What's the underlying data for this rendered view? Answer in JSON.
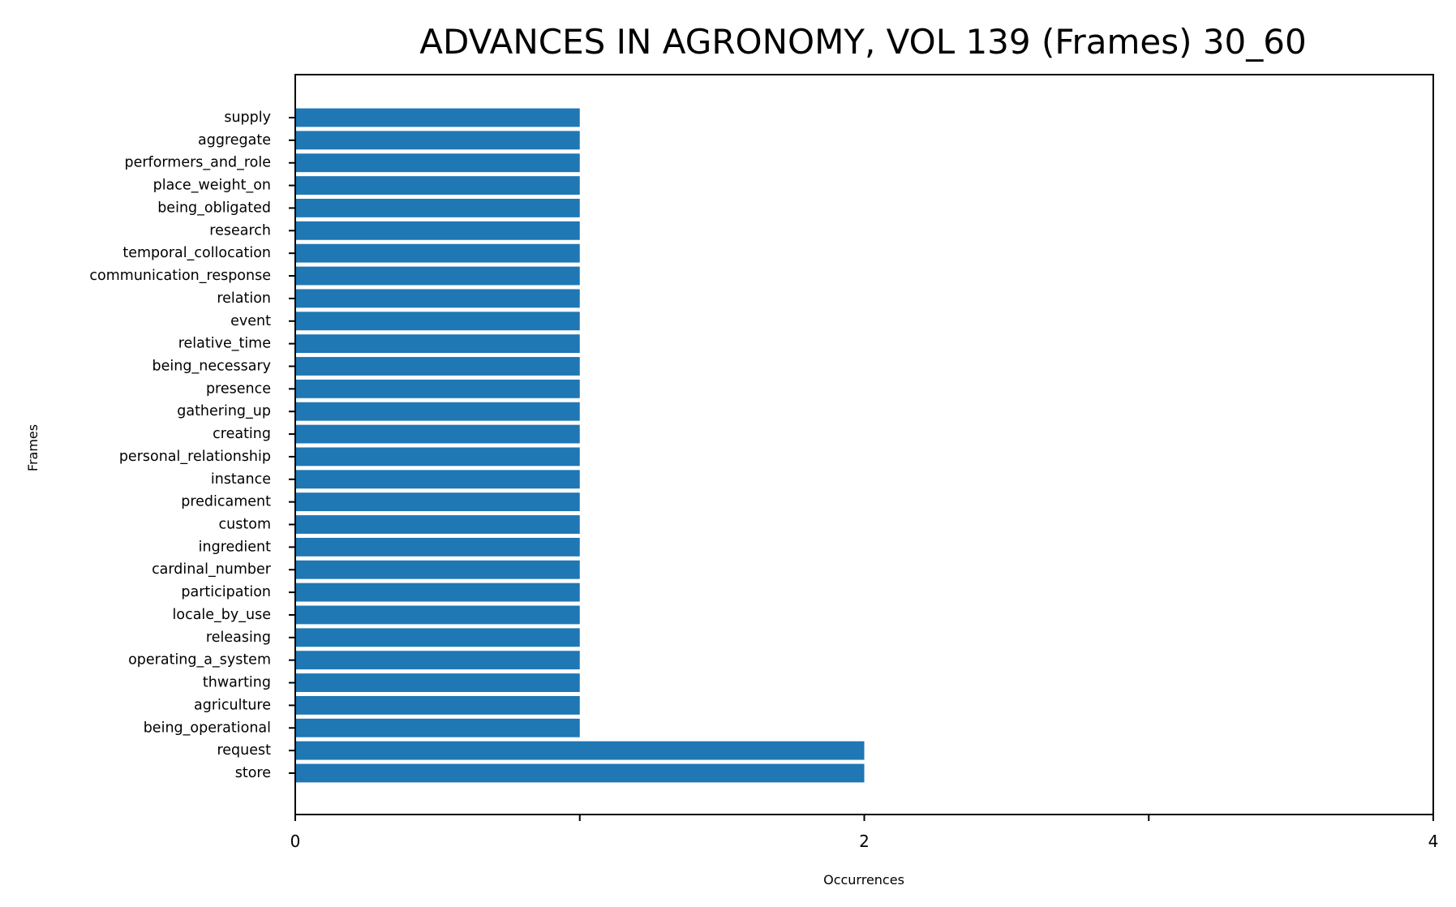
{
  "chart_data": {
    "type": "bar",
    "orientation": "horizontal",
    "title": "ADVANCES IN AGRONOMY, VOL 139 (Frames) 30_60",
    "xlabel": "Occurrences",
    "ylabel": "Frames",
    "xlim": [
      0,
      4
    ],
    "xticks": [
      0,
      1,
      2,
      3,
      4
    ],
    "xtick_labels": [
      "0",
      "",
      "2",
      "",
      "4"
    ],
    "grid": false,
    "legend": "none",
    "color": "#1f77b4",
    "categories": [
      "supply",
      "aggregate",
      "performers_and_role",
      "place_weight_on",
      "being_obligated",
      "research",
      "temporal_collocation",
      "communication_response",
      "relation",
      "event",
      "relative_time",
      "being_necessary",
      "presence",
      "gathering_up",
      "creating",
      "personal_relationship",
      "instance",
      "predicament",
      "custom",
      "ingredient",
      "cardinal_number",
      "participation",
      "locale_by_use",
      "releasing",
      "operating_a_system",
      "thwarting",
      "agriculture",
      "being_operational",
      "request",
      "store"
    ],
    "values": [
      1,
      1,
      1,
      1,
      1,
      1,
      1,
      1,
      1,
      1,
      1,
      1,
      1,
      1,
      1,
      1,
      1,
      1,
      1,
      1,
      1,
      1,
      1,
      1,
      1,
      1,
      1,
      1,
      2,
      2
    ]
  }
}
